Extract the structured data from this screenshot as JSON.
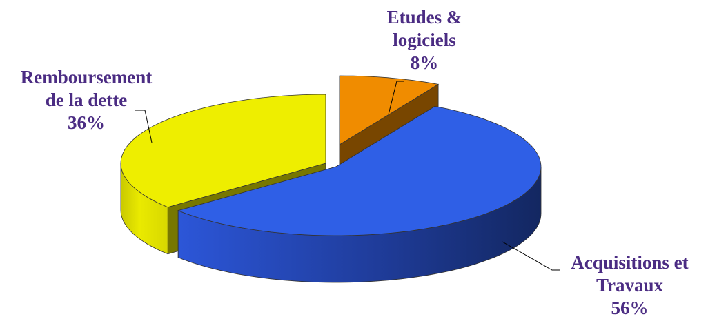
{
  "chart_data": {
    "type": "pie",
    "style": "3d-exploded",
    "label_color": "#4b2c83",
    "slices": [
      {
        "key": "etudes",
        "label_lines": [
          "Etudes &",
          "logiciels"
        ],
        "percent_label": "8%",
        "value": 8,
        "color": "#f08c00"
      },
      {
        "key": "acquisitions",
        "label_lines": [
          "Acquisitions et",
          "Travaux"
        ],
        "percent_label": "56%",
        "value": 56,
        "color": "#2f5fe6"
      },
      {
        "key": "remboursement",
        "label_lines": [
          "Remboursement",
          "de la dette"
        ],
        "percent_label": "36%",
        "value": 36,
        "color": "#eeee00"
      }
    ]
  }
}
